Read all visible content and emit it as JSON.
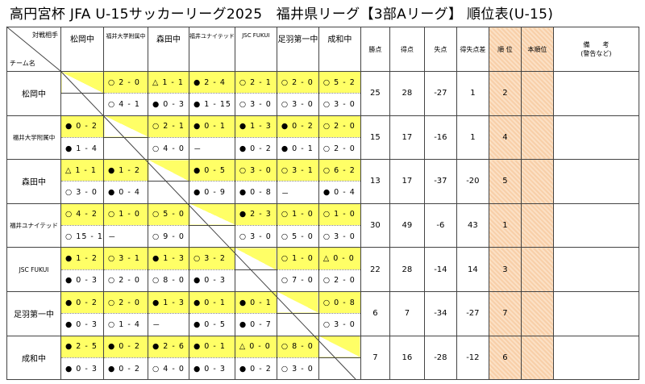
{
  "header": {
    "title": "高円宮杯 JFA U-15サッカーリーグ2025　福井県リーグ【3部Aリーグ】 順位表(U-15)"
  },
  "table": {
    "corner_top": "対戦相手",
    "corner_bottom": "チーム名",
    "teams": [
      "松岡中",
      "福井大学附属中",
      "森田中",
      "福井ユナイテッド",
      "JSC FUKUI",
      "足羽第一中",
      "成和中"
    ],
    "stat_headers": [
      "勝点",
      "得点",
      "失点",
      "得失点差",
      "順 位",
      "本順位"
    ],
    "remarks_header": [
      "備　　考",
      "(警告など)"
    ],
    "rows": [
      {
        "team": "松岡中",
        "results": [
          null,
          [
            "○ 2 - 0",
            "○ 4 - 1"
          ],
          [
            "△ 1 - 1",
            "● 0 - 3"
          ],
          [
            "● 2 - 4",
            "● 1 - 15"
          ],
          [
            "○ 2 - 1",
            "○ 3 - 0"
          ],
          [
            "○ 2 - 0",
            "○ 3 - 0"
          ],
          [
            "○ 5 - 2",
            "○ 3 - 0"
          ]
        ],
        "stats": [
          25,
          28,
          -27,
          1,
          2
        ]
      },
      {
        "team": "福井大学附属中",
        "results": [
          [
            "● 0 - 2",
            "● 1 - 4"
          ],
          null,
          [
            "○ 2 - 1",
            "○ 4 - 0"
          ],
          [
            "● 0 - 1",
            "－"
          ],
          [
            "● 1 - 3",
            "● 0 - 2"
          ],
          [
            "● 0 - 2",
            "● 0 - 1"
          ],
          [
            "○ 2 - 0",
            "○ 2 - 0"
          ]
        ],
        "stats": [
          15,
          17,
          -16,
          1,
          4
        ]
      },
      {
        "team": "森田中",
        "results": [
          [
            "△ 1 - 1",
            "○ 3 - 0"
          ],
          [
            "● 1 - 2",
            "● 0 - 4"
          ],
          null,
          [
            "● 0 - 5",
            "● 0 - 9"
          ],
          [
            "○ 3 - 0",
            "● 0 - 8"
          ],
          [
            "○ 3 - 1",
            "－"
          ],
          [
            "○ 6 - 2",
            "● 0 - 4"
          ]
        ],
        "stats": [
          13,
          17,
          -37,
          -20,
          5
        ]
      },
      {
        "team": "福井ユナイテッド",
        "results": [
          [
            "○ 4 - 2",
            "○ 15 - 1"
          ],
          [
            "○ 1 - 0",
            "－"
          ],
          [
            "○ 5 - 0",
            "○ 9 - 0"
          ],
          null,
          [
            "● 2 - 3",
            "○ 3 - 0"
          ],
          [
            "○ 1 - 0",
            "○ 5 - 0"
          ],
          [
            "○ 1 - 0",
            "○ 3 - 0"
          ]
        ],
        "stats": [
          30,
          49,
          -6,
          43,
          1
        ]
      },
      {
        "team": "JSC FUKUI",
        "results": [
          [
            "● 1 - 2",
            "● 0 - 3"
          ],
          [
            "○ 3 - 1",
            "○ 2 - 0"
          ],
          [
            "● 1 - 3",
            "○ 8 - 0"
          ],
          [
            "○ 3 - 2",
            "● 0 - 3"
          ],
          null,
          [
            "○ 1 - 0",
            "○ 7 - 0"
          ],
          [
            "△ 0 - 0",
            "○ 2 - 0"
          ]
        ],
        "stats": [
          22,
          28,
          -14,
          14,
          3
        ]
      },
      {
        "team": "足羽第一中",
        "results": [
          [
            "● 0 - 2",
            "● 0 - 3"
          ],
          [
            "○ 2 - 0",
            "○ 1 - 4"
          ],
          [
            "● 1 - 3",
            "－"
          ],
          [
            "● 0 - 1",
            "● 0 - 5"
          ],
          [
            "● 0 - 1",
            "● 0 - 7"
          ],
          null,
          [
            "○ 0 - 8",
            "○ 3 - 0"
          ]
        ],
        "stats": [
          6,
          7,
          -34,
          -27,
          7
        ]
      },
      {
        "team": "成和中",
        "results": [
          [
            "● 2 - 5",
            "● 0 - 3"
          ],
          [
            "● 0 - 2",
            "● 0 - 2"
          ],
          [
            "● 2 - 6",
            "○ 4 - 0"
          ],
          [
            "● 0 - 1",
            "● 0 - 3"
          ],
          [
            "△ 0 - 0",
            "● 0 - 2"
          ],
          [
            "○ 8 - 0",
            "○ 3 - 0"
          ],
          null
        ],
        "stats": [
          7,
          16,
          -28,
          -12,
          6
        ]
      }
    ]
  }
}
